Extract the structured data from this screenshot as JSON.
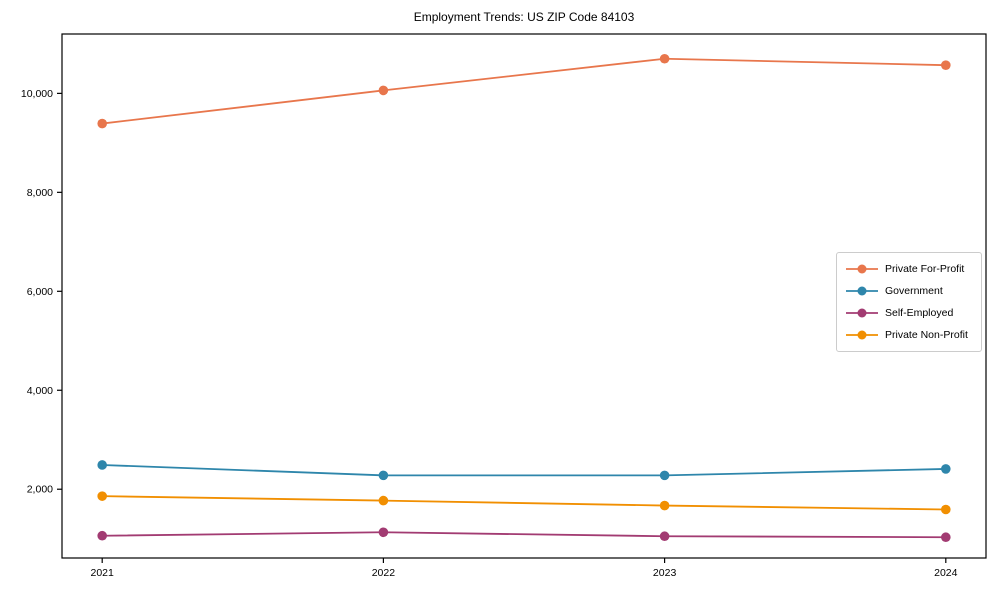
{
  "figure": {
    "background": "#ffffff",
    "axes_border_color": "#000000",
    "text_color": "#000000",
    "legend_border_color": "#cccccc"
  },
  "chart_data": {
    "type": "line",
    "title": "Employment Trends: US ZIP Code 84103",
    "xlabel": "",
    "ylabel": "",
    "x_labels": [
      "2021",
      "2022",
      "2023",
      "2024"
    ],
    "series": [
      {
        "name": "Private For-Profit",
        "color": "#E8764C",
        "values": [
          9390,
          10060,
          10700,
          10570
        ]
      },
      {
        "name": "Government",
        "color": "#2E86AB",
        "values": [
          2490,
          2280,
          2280,
          2410
        ]
      },
      {
        "name": "Self-Employed",
        "color": "#A23B72",
        "values": [
          1060,
          1130,
          1050,
          1030
        ]
      },
      {
        "name": "Private Non-Profit",
        "color": "#F18F01",
        "values": [
          1860,
          1770,
          1670,
          1590
        ]
      }
    ],
    "yticks": [
      2000,
      4000,
      6000,
      8000,
      10000
    ],
    "ylim": [
      610,
      11200
    ],
    "grid": false,
    "legend_position": "center right",
    "marker": "circle",
    "tick_label_format": "thousands-comma"
  }
}
